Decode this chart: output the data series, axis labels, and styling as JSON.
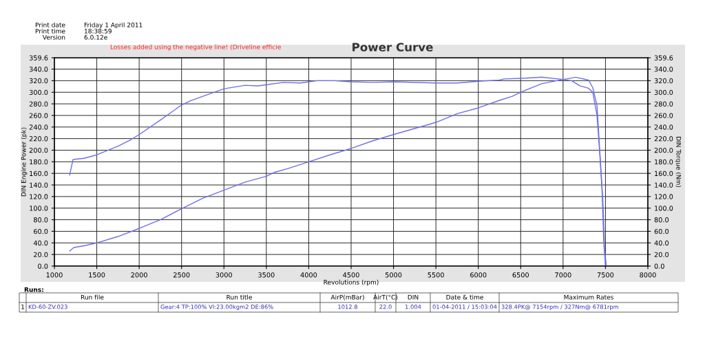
{
  "chart_data": {
    "type": "line",
    "title": "Power Curve",
    "xlabel": "Revolutions (rpm)",
    "ylabel": "DIN Engine Power (pk)",
    "y2label": "DIN Torque (Nm)",
    "xlim": [
      1000,
      8000
    ],
    "xticks": [
      1000,
      1500,
      2000,
      2500,
      3000,
      3500,
      4000,
      4500,
      5000,
      5500,
      6000,
      6500,
      7000,
      7500,
      8000
    ],
    "ylim": [
      0,
      359.6
    ],
    "yticks": [
      {
        "value": 0,
        "label": "0.0"
      },
      {
        "value": 20,
        "label": "20.0"
      },
      {
        "value": 40,
        "label": "40.0"
      },
      {
        "value": 60,
        "label": "60.0"
      },
      {
        "value": 80,
        "label": "80.0"
      },
      {
        "value": 100,
        "label": "100.0"
      },
      {
        "value": 120,
        "label": "120.0"
      },
      {
        "value": 140,
        "label": "140.0"
      },
      {
        "value": 160,
        "label": "160.0"
      },
      {
        "value": 180,
        "label": "180.0"
      },
      {
        "value": 200,
        "label": "200.0"
      },
      {
        "value": 220,
        "label": "220.0"
      },
      {
        "value": 240,
        "label": "240.0"
      },
      {
        "value": 260,
        "label": "260.0"
      },
      {
        "value": 280,
        "label": "280.0"
      },
      {
        "value": 300,
        "label": "300.0"
      },
      {
        "value": 320,
        "label": "320.0"
      },
      {
        "value": 340,
        "label": "340.0"
      },
      {
        "value": 359.6,
        "label": "359.6"
      }
    ],
    "y2lim": [
      0,
      359.6
    ],
    "y2ticks": [
      {
        "value": 0,
        "label": "0.0"
      },
      {
        "value": 20,
        "label": "20.0"
      },
      {
        "value": 40,
        "label": "40.0"
      },
      {
        "value": 60,
        "label": "60.0"
      },
      {
        "value": 80,
        "label": "80.0"
      },
      {
        "value": 100,
        "label": "100.0"
      },
      {
        "value": 120,
        "label": "120.0"
      },
      {
        "value": 140,
        "label": "140.0"
      },
      {
        "value": 160,
        "label": "160.0"
      },
      {
        "value": 180,
        "label": "180.0"
      },
      {
        "value": 200,
        "label": "200.0"
      },
      {
        "value": 220,
        "label": "220.0"
      },
      {
        "value": 240,
        "label": "240.0"
      },
      {
        "value": 260,
        "label": "260.0"
      },
      {
        "value": 280,
        "label": "280.0"
      },
      {
        "value": 300,
        "label": "300.0"
      },
      {
        "value": 320,
        "label": "320.0"
      },
      {
        "value": 340,
        "label": "340.0"
      },
      {
        "value": 359.6,
        "label": "359.6"
      }
    ],
    "grid": true,
    "legend": false,
    "line_style": "solid",
    "series": [
      {
        "color": "#6f6fe8",
        "x": [
          1180,
          1230,
          1350,
          1500,
          1750,
          2000,
          2250,
          2500,
          2750,
          3000,
          3250,
          3500,
          3600,
          3750,
          4000,
          4250,
          4500,
          4750,
          5000,
          5500,
          5750,
          6000,
          6250,
          6400,
          6500,
          6750,
          7000,
          7150,
          7300,
          7350,
          7400,
          7430,
          7470,
          7490,
          7510
        ],
        "values": [
          26,
          32,
          35,
          40,
          51,
          65,
          80,
          99,
          117,
          131,
          145,
          155,
          162,
          168,
          180,
          192,
          203,
          216,
          227,
          248,
          263,
          273,
          286,
          293,
          300,
          315,
          322,
          326,
          321,
          308,
          277,
          206,
          111,
          28,
          0
        ]
      },
      {
        "color": "#6f6fe8",
        "axis": "y2",
        "x": [
          1180,
          1220,
          1350,
          1500,
          1750,
          1900,
          2000,
          2250,
          2500,
          2600,
          2750,
          3000,
          3250,
          3400,
          3500,
          3700,
          3900,
          4000,
          4100,
          4300,
          4500,
          4750,
          5000,
          5500,
          5750,
          6000,
          6250,
          6300,
          6500,
          6750,
          7000,
          7100,
          7200,
          7300,
          7350,
          7400,
          7430,
          7460,
          7480,
          7500
        ],
        "values": [
          157,
          184,
          186,
          192,
          207,
          218,
          227,
          252,
          278,
          285,
          293,
          306,
          312,
          311,
          313,
          317,
          316,
          318,
          320,
          320,
          318,
          317,
          318,
          316,
          316,
          319,
          321,
          323,
          324,
          326,
          322,
          320,
          311,
          307,
          300,
          260,
          200,
          130,
          40,
          0
        ]
      }
    ],
    "annotations": [
      "Print date",
      "Friday 1 April 2011",
      "Print time",
      "18:38:59",
      "Version",
      "6.0.12e",
      "Losses added using the negative line! (Driveline efficie",
      "Runs:",
      "Run file",
      "Run title",
      "AirP(mBar)",
      "AirT(°C)",
      "DIN",
      "Date & time",
      "Maximum Rates",
      "1",
      "KD-60-ZV.023",
      "Gear:4 TP:100% VI:23.00kgm2 DE:86%",
      "1012.8",
      "22.0",
      "1.004",
      "01-04-2011 / 15:03:04",
      "328.4PK@ 7154rpm / 327Nm@ 6781rpm"
    ]
  }
}
